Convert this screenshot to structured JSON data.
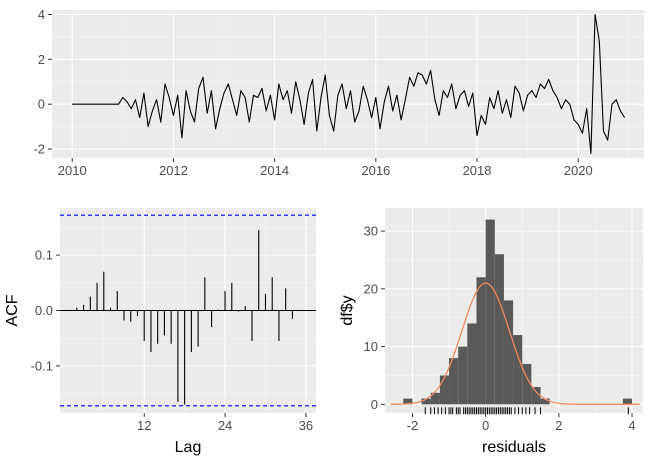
{
  "chart_data": [
    {
      "type": "line",
      "x_ticks": [
        "2010",
        "2012",
        "2014",
        "2016",
        "2018",
        "2020"
      ],
      "y_ticks": [
        "-2",
        "0",
        "2",
        "4"
      ],
      "xlim": [
        2009.6,
        2021.3
      ],
      "ylim": [
        -2.4,
        4.2
      ],
      "start_year": 2010,
      "points_per_year": 12,
      "values": [
        0,
        0,
        0,
        0,
        0,
        0,
        0,
        0,
        0,
        0,
        0,
        0,
        0.3,
        0.1,
        -0.2,
        0.2,
        -0.6,
        0.5,
        -1.0,
        -0.3,
        0.2,
        -0.8,
        0.9,
        0.3,
        -0.5,
        0.4,
        -1.5,
        0.6,
        -0.3,
        -0.8,
        0.7,
        1.2,
        -0.4,
        0.6,
        -1.1,
        -0.2,
        0.5,
        0.9,
        0.2,
        -0.5,
        0.6,
        0.3,
        -0.8,
        0.4,
        0.3,
        0.7,
        -0.3,
        0.4,
        -0.7,
        0.9,
        0.2,
        0.6,
        -0.4,
        1.0,
        0.2,
        -0.9,
        0.5,
        1.1,
        -1.2,
        0.3,
        1.3,
        -0.5,
        -1.2,
        0.4,
        0.9,
        -0.2,
        0.6,
        -0.8,
        -0.3,
        0.8,
        0.2,
        -0.6,
        0.3,
        -1.1,
        0.1,
        0.8,
        -0.3,
        0.4,
        -0.7,
        0.2,
        1.2,
        0.8,
        1.4,
        1.3,
        0.9,
        1.5,
        0.2,
        -0.5,
        0.6,
        0.3,
        0.9,
        -0.2,
        0.4,
        0.6,
        -0.1,
        0.5,
        -1.4,
        -0.5,
        -0.9,
        0.3,
        -0.2,
        0.6,
        -0.4,
        0.2,
        -0.6,
        0.8,
        0.5,
        -0.3,
        0.4,
        0.6,
        0.3,
        0.9,
        0.7,
        1.1,
        0.6,
        0.3,
        -0.2,
        0.2,
        0.0,
        -0.7,
        -0.9,
        -1.3,
        -0.2,
        -2.2,
        4.0,
        2.8,
        -1.2,
        -1.6,
        0.0,
        0.2,
        -0.3,
        -0.6
      ],
      "grid": true
    },
    {
      "type": "bar",
      "xlabel": "Lag",
      "ylabel": "ACF",
      "x_ticks": [
        "12",
        "24",
        "36"
      ],
      "y_ticks": [
        "-0.1",
        "0.0",
        "0.1"
      ],
      "xlim": [
        -0.5,
        37.5
      ],
      "ylim": [
        -0.185,
        0.185
      ],
      "lags": [
        1,
        2,
        3,
        4,
        5,
        6,
        7,
        8,
        9,
        10,
        11,
        12,
        13,
        14,
        15,
        16,
        17,
        18,
        19,
        20,
        21,
        22,
        23,
        24,
        25,
        26,
        27,
        28,
        29,
        30,
        31,
        32,
        33,
        34,
        35,
        36
      ],
      "values": [
        0.001,
        0.005,
        0.01,
        0.025,
        0.05,
        0.07,
        0.005,
        0.035,
        -0.018,
        -0.02,
        -0.01,
        -0.055,
        -0.075,
        -0.06,
        -0.045,
        -0.06,
        -0.165,
        -0.17,
        -0.075,
        -0.065,
        0.06,
        -0.03,
        0.002,
        0.035,
        0.05,
        -0.002,
        0.008,
        -0.055,
        0.145,
        0.03,
        0.06,
        -0.055,
        0.04,
        -0.015,
        0.0,
        0.0
      ],
      "ci": 0.172,
      "grid": true
    },
    {
      "type": "bar",
      "xlabel": "residuals",
      "ylabel": "df$y",
      "x_ticks": [
        "-2",
        "0",
        "2",
        "4"
      ],
      "y_ticks": [
        "0",
        "10",
        "20",
        "30"
      ],
      "xlim": [
        -2.75,
        4.3
      ],
      "ylim": [
        -1.5,
        34
      ],
      "bin_width": 0.25,
      "bins": [
        [
          -2.25,
          1
        ],
        [
          -2.0,
          0
        ],
        [
          -1.75,
          1
        ],
        [
          -1.5,
          2
        ],
        [
          -1.25,
          5
        ],
        [
          -1.0,
          8
        ],
        [
          -0.75,
          10
        ],
        [
          -0.5,
          14
        ],
        [
          -0.25,
          22
        ],
        [
          0.0,
          32
        ],
        [
          0.25,
          26
        ],
        [
          0.5,
          18
        ],
        [
          0.75,
          12
        ],
        [
          1.0,
          7
        ],
        [
          1.25,
          3
        ],
        [
          1.5,
          1
        ],
        [
          3.75,
          1
        ]
      ],
      "density_curve": "normal",
      "grid": true
    }
  ]
}
